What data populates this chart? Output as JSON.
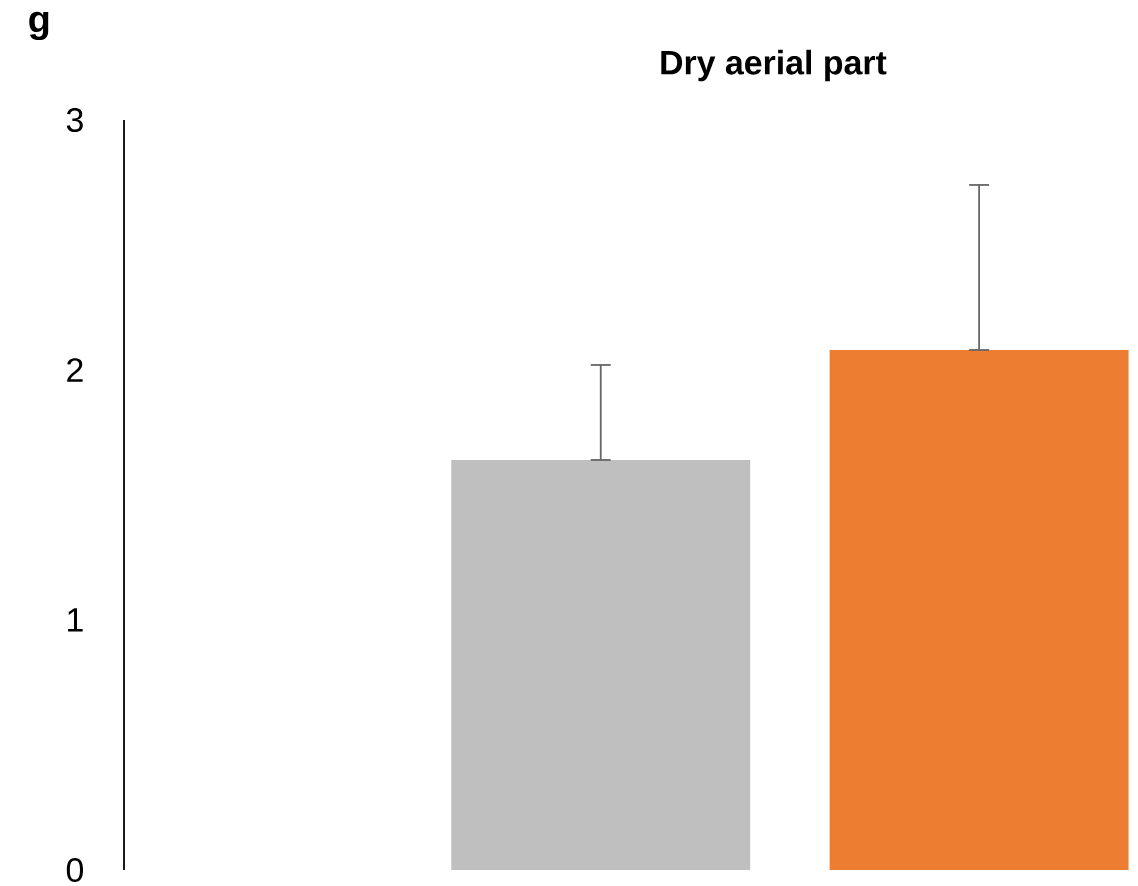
{
  "chart_data": {
    "type": "bar",
    "title": "Dry aerial part",
    "ylabel": "g",
    "categories": [
      null,
      null
    ],
    "values": [
      1.64,
      2.08
    ],
    "colors": [
      "#bfbfbf",
      "#ed7d31"
    ],
    "errors": [
      [
        1.64,
        2.02
      ],
      [
        2.08,
        2.74
      ]
    ],
    "ylim": [
      0,
      3
    ],
    "yticks": [
      0,
      1,
      2,
      3
    ],
    "grid": false
  }
}
